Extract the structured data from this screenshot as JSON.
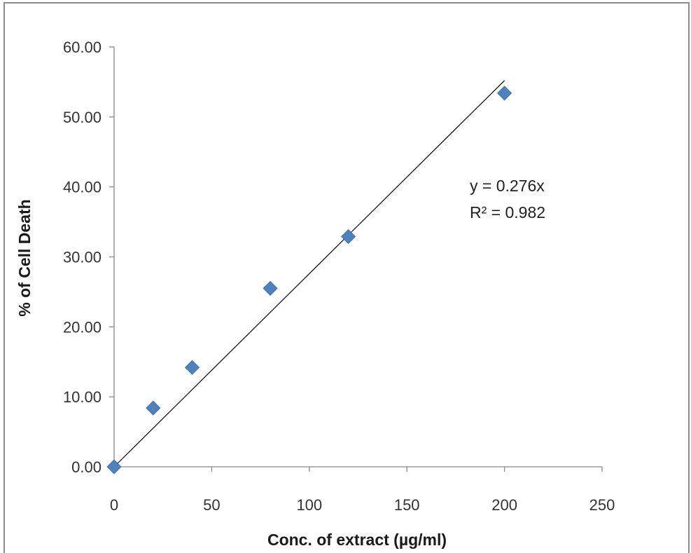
{
  "chart_data": {
    "type": "scatter",
    "title": "",
    "xlabel": "Conc. of extract (µg/ml)",
    "ylabel": "% of  Cell Death",
    "xlim": [
      0,
      250
    ],
    "ylim": [
      0,
      60
    ],
    "x_ticks": [
      "0",
      "50",
      "100",
      "150",
      "200",
      "250"
    ],
    "y_ticks": [
      "0.00",
      "10.00",
      "20.00",
      "30.00",
      "40.00",
      "50.00",
      "60.00"
    ],
    "grid": false,
    "legend": "none",
    "marker": "diamond",
    "marker_color": "#4f81bd",
    "series": [
      {
        "x": [
          0,
          20,
          40,
          80,
          120,
          200
        ],
        "y": [
          0.0,
          8.4,
          14.2,
          25.5,
          32.9,
          53.4
        ]
      }
    ],
    "trendline": {
      "type": "linear",
      "slope": 0.276,
      "intercept": 0,
      "x_range": [
        0,
        200
      ],
      "color": "#000000"
    },
    "annotations": {
      "equation": "y = 0.276x",
      "r_squared": "R² = 0.982"
    }
  }
}
